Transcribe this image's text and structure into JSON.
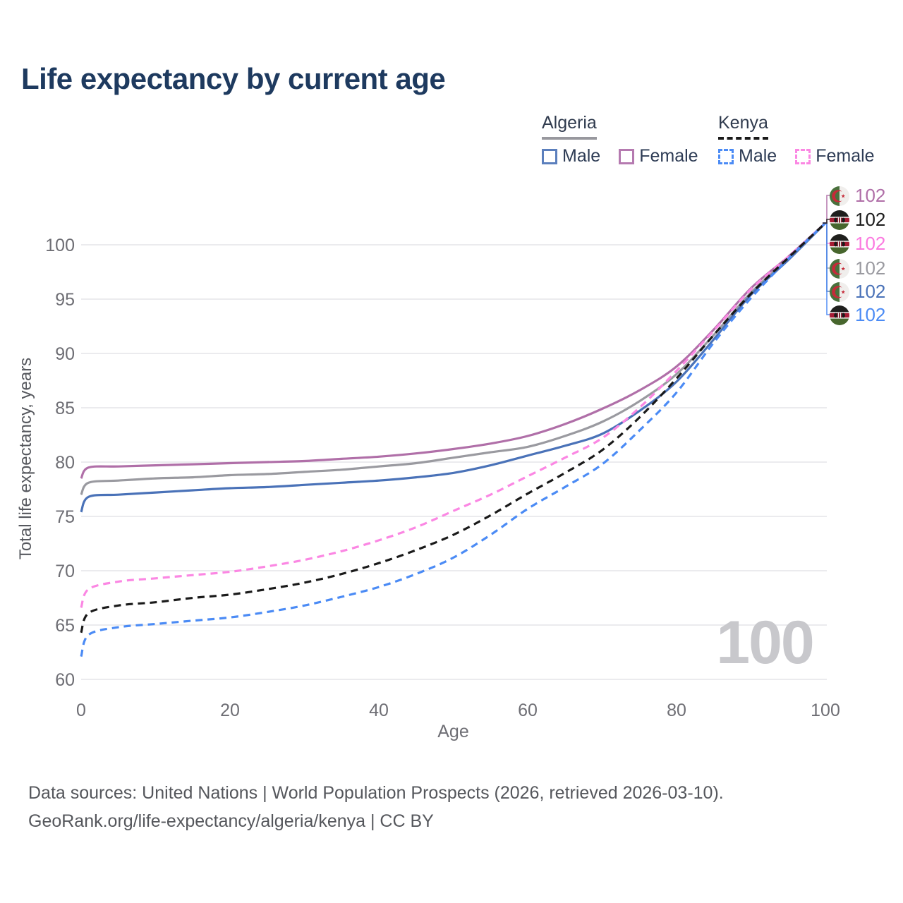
{
  "page": {
    "title": "Life expectancy by current age",
    "watermark_age": "100"
  },
  "legend": {
    "groups": [
      {
        "country": "Algeria",
        "line_style": "solid",
        "line_color": "#98989e",
        "items": [
          {
            "label": "Male",
            "color": "#5b7fbd",
            "dashed": false
          },
          {
            "label": "Female",
            "color": "#b57ab0",
            "dashed": false
          }
        ]
      },
      {
        "country": "Kenya",
        "line_style": "dashed",
        "line_color": "#1a1a1a",
        "items": [
          {
            "label": "Male",
            "color": "#4b8bf5",
            "dashed": true
          },
          {
            "label": "Female",
            "color": "#fb87e3",
            "dashed": true
          }
        ]
      }
    ]
  },
  "chart_data": {
    "type": "line",
    "title": "Life expectancy by current age",
    "xlabel": "Age",
    "ylabel": "Total life expectancy, years",
    "xlim": [
      0,
      105
    ],
    "ylim": [
      58,
      104
    ],
    "xticks": [
      0,
      20,
      40,
      60,
      80,
      100
    ],
    "yticks": [
      60,
      65,
      70,
      75,
      80,
      85,
      90,
      95,
      100
    ],
    "grid": "horizontal",
    "legend_position": "top-right",
    "x": [
      0,
      1,
      5,
      10,
      15,
      20,
      25,
      30,
      35,
      40,
      45,
      50,
      55,
      60,
      65,
      70,
      75,
      80,
      85,
      90,
      95,
      100
    ],
    "series": [
      {
        "name": "Algeria Female",
        "country": "Algeria",
        "sex": "Female",
        "style": "solid",
        "color": "#b06fa8",
        "end_value": 102,
        "values": [
          78.5,
          79.5,
          79.6,
          79.7,
          79.8,
          79.9,
          80.0,
          80.1,
          80.3,
          80.5,
          80.8,
          81.2,
          81.7,
          82.4,
          83.5,
          84.9,
          86.6,
          88.8,
          92.2,
          96.0,
          98.9,
          102
        ]
      },
      {
        "name": "Algeria",
        "country": "Algeria",
        "sex": "All",
        "style": "solid",
        "color": "#9a9aa0",
        "end_value": 102,
        "values": [
          77.0,
          78.1,
          78.3,
          78.5,
          78.6,
          78.8,
          78.9,
          79.1,
          79.3,
          79.6,
          79.9,
          80.4,
          80.9,
          81.4,
          82.4,
          83.7,
          85.6,
          88.1,
          91.7,
          95.6,
          98.7,
          102
        ]
      },
      {
        "name": "Algeria Male",
        "country": "Algeria",
        "sex": "Male",
        "style": "solid",
        "color": "#4a72b8",
        "end_value": 102,
        "values": [
          75.4,
          76.8,
          77.0,
          77.2,
          77.4,
          77.6,
          77.7,
          77.9,
          78.1,
          78.3,
          78.6,
          79.0,
          79.7,
          80.6,
          81.5,
          82.6,
          84.7,
          87.4,
          91.3,
          95.4,
          98.6,
          102
        ]
      },
      {
        "name": "Kenya Female",
        "country": "Kenya",
        "sex": "Female",
        "style": "dashed",
        "color": "#fb87e3",
        "end_value": 102,
        "values": [
          66.6,
          68.3,
          69.0,
          69.3,
          69.6,
          69.9,
          70.4,
          71.0,
          71.8,
          72.8,
          74.0,
          75.5,
          77.0,
          78.7,
          80.4,
          82.2,
          85.0,
          88.4,
          92.1,
          95.9,
          98.9,
          102
        ]
      },
      {
        "name": "Kenya Male",
        "country": "Kenya",
        "sex": "Male",
        "style": "dashed",
        "color": "#4b8bf5",
        "end_value": 102,
        "values": [
          62.1,
          64.1,
          64.8,
          65.1,
          65.4,
          65.7,
          66.2,
          66.8,
          67.6,
          68.5,
          69.7,
          71.2,
          73.3,
          75.7,
          77.7,
          79.8,
          82.9,
          86.4,
          91.0,
          95.1,
          98.7,
          102
        ]
      },
      {
        "name": "Kenya",
        "country": "Kenya",
        "sex": "All",
        "style": "dashed",
        "color": "#1a1a1a",
        "end_value": 102,
        "values": [
          64.3,
          66.1,
          66.8,
          67.1,
          67.5,
          67.8,
          68.3,
          68.9,
          69.7,
          70.7,
          71.9,
          73.3,
          75.1,
          77.1,
          79.0,
          81.1,
          84.1,
          87.7,
          91.7,
          95.5,
          98.8,
          102
        ]
      }
    ]
  },
  "end_labels": [
    {
      "flag": "algeria",
      "series": "Algeria Female",
      "value": "102",
      "color": "#b06fa8"
    },
    {
      "flag": "kenya",
      "series": "Kenya",
      "value": "102",
      "color": "#1c1c1c"
    },
    {
      "flag": "kenya",
      "series": "Kenya Female",
      "value": "102",
      "color": "#fb7ae0"
    },
    {
      "flag": "algeria",
      "series": "Algeria",
      "value": "102",
      "color": "#9a9aa0"
    },
    {
      "flag": "algeria",
      "series": "Algeria Male",
      "value": "102",
      "color": "#4a72b8"
    },
    {
      "flag": "kenya",
      "series": "Kenya Male",
      "value": "102",
      "color": "#4b8bf5"
    }
  ],
  "footer": {
    "line1": "Data sources: United Nations | World Population Prospects (2026, retrieved 2026-03-10).",
    "line2": "GeoRank.org/life-expectancy/algeria/kenya | CC BY"
  }
}
